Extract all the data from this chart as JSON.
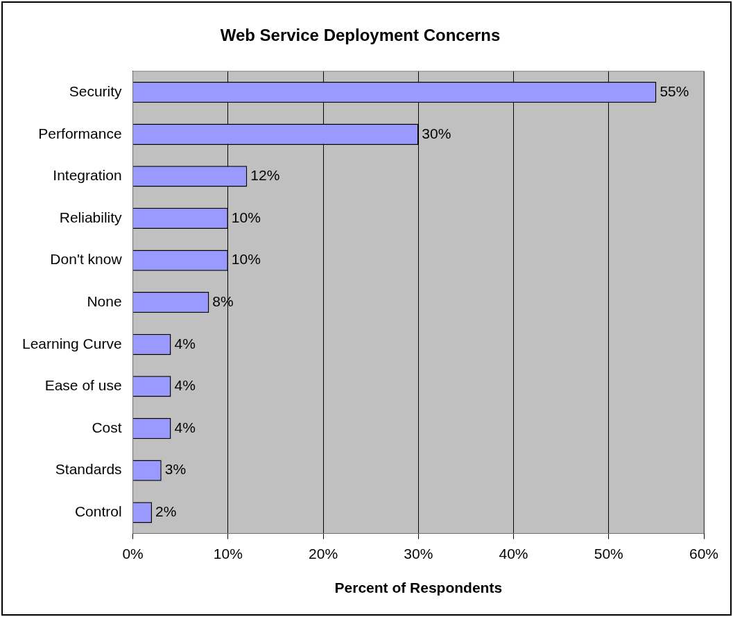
{
  "chart_data": {
    "type": "bar",
    "orientation": "horizontal",
    "title": "Web Service Deployment Concerns",
    "xlabel": "Percent of Respondents",
    "categories": [
      "Security",
      "Performance",
      "Integration",
      "Reliability",
      "Don't know",
      "None",
      "Learning Curve",
      "Ease of use",
      "Cost",
      "Standards",
      "Control"
    ],
    "values": [
      55,
      30,
      12,
      10,
      10,
      8,
      4,
      4,
      4,
      3,
      2
    ],
    "value_labels": [
      "55%",
      "30%",
      "12%",
      "10%",
      "10%",
      "8%",
      "4%",
      "4%",
      "4%",
      "3%",
      "2%"
    ],
    "color": "#9999ff",
    "xlim": [
      0,
      60
    ],
    "xticks": [
      {
        "value": 0,
        "label": "0%"
      },
      {
        "value": 10,
        "label": "10%"
      },
      {
        "value": 20,
        "label": "20%"
      },
      {
        "value": 30,
        "label": "30%"
      },
      {
        "value": 40,
        "label": "40%"
      },
      {
        "value": 50,
        "label": "50%"
      },
      {
        "value": 60,
        "label": "60%"
      }
    ],
    "grid": "x",
    "legend": false
  }
}
